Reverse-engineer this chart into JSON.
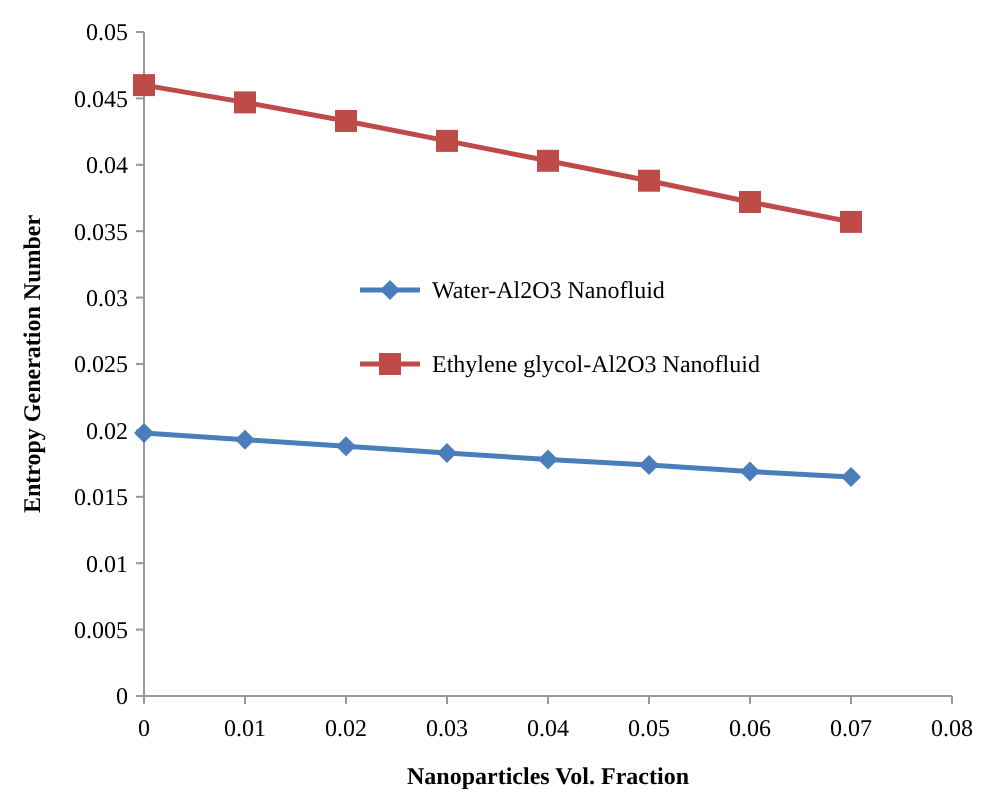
{
  "chart_data": {
    "type": "line",
    "xlabel": "Nanoparticles Vol. Fraction",
    "ylabel": "Entropy Generation Number",
    "x": [
      0,
      0.01,
      0.02,
      0.03,
      0.04,
      0.05,
      0.06,
      0.07
    ],
    "series": [
      {
        "name": "Water-Al2O3 Nanofluid",
        "color": "#4a7ebb",
        "marker": "diamond",
        "values": [
          0.0198,
          0.0193,
          0.0188,
          0.0183,
          0.0178,
          0.0174,
          0.0169,
          0.0165
        ]
      },
      {
        "name": "Ethylene glycol-Al2O3 Nanofluid",
        "color": "#be4b48",
        "marker": "square",
        "values": [
          0.046,
          0.0447,
          0.0433,
          0.0418,
          0.0403,
          0.0388,
          0.0372,
          0.0357
        ]
      }
    ],
    "xlim": [
      0,
      0.08
    ],
    "xticks": [
      0,
      0.01,
      0.02,
      0.03,
      0.04,
      0.05,
      0.06,
      0.07,
      0.08
    ],
    "ylim": [
      0,
      0.05
    ],
    "yticks": [
      0,
      0.005,
      0.01,
      0.015,
      0.02,
      0.025,
      0.03,
      0.035,
      0.04,
      0.045,
      0.05
    ],
    "legend": "center",
    "grid": false
  }
}
